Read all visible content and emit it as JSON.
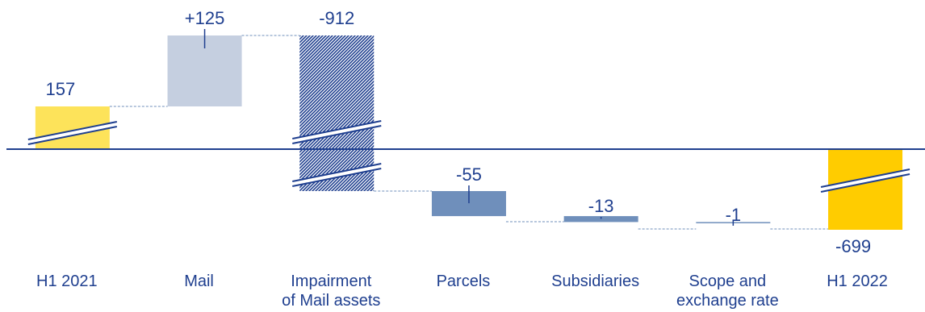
{
  "chart_data": {
    "type": "bar",
    "subtype": "waterfall",
    "axis_break_shown": true,
    "categories": [
      [
        "H1 2021"
      ],
      [
        "Mail"
      ],
      [
        "Impairment",
        "of Mail assets"
      ],
      [
        "Parcels"
      ],
      [
        "Subsidiaries"
      ],
      [
        "Scope and",
        "exchange rate"
      ],
      [
        "H1 2022"
      ]
    ],
    "values": [
      157,
      125,
      -912,
      -55,
      -13,
      -1,
      -699
    ],
    "value_labels": [
      "157",
      "+125",
      "-912",
      "-55",
      "-13",
      "-1",
      "-699"
    ],
    "bar_kind": [
      "total",
      "delta",
      "delta",
      "delta",
      "delta",
      "delta",
      "total"
    ],
    "title": "",
    "xlabel": "",
    "ylabel": "",
    "grid": false,
    "legend": "none"
  },
  "colors": {
    "start_total": "#fde35a",
    "end_total": "#ffcc00",
    "increase": "#c5cfe0",
    "impairment_hatch": "#1f3f8f",
    "decrease": "#6f8fbb",
    "axis": "#1f3f8f",
    "text": "#1f3f8f",
    "connector": "#6f8fbb"
  }
}
